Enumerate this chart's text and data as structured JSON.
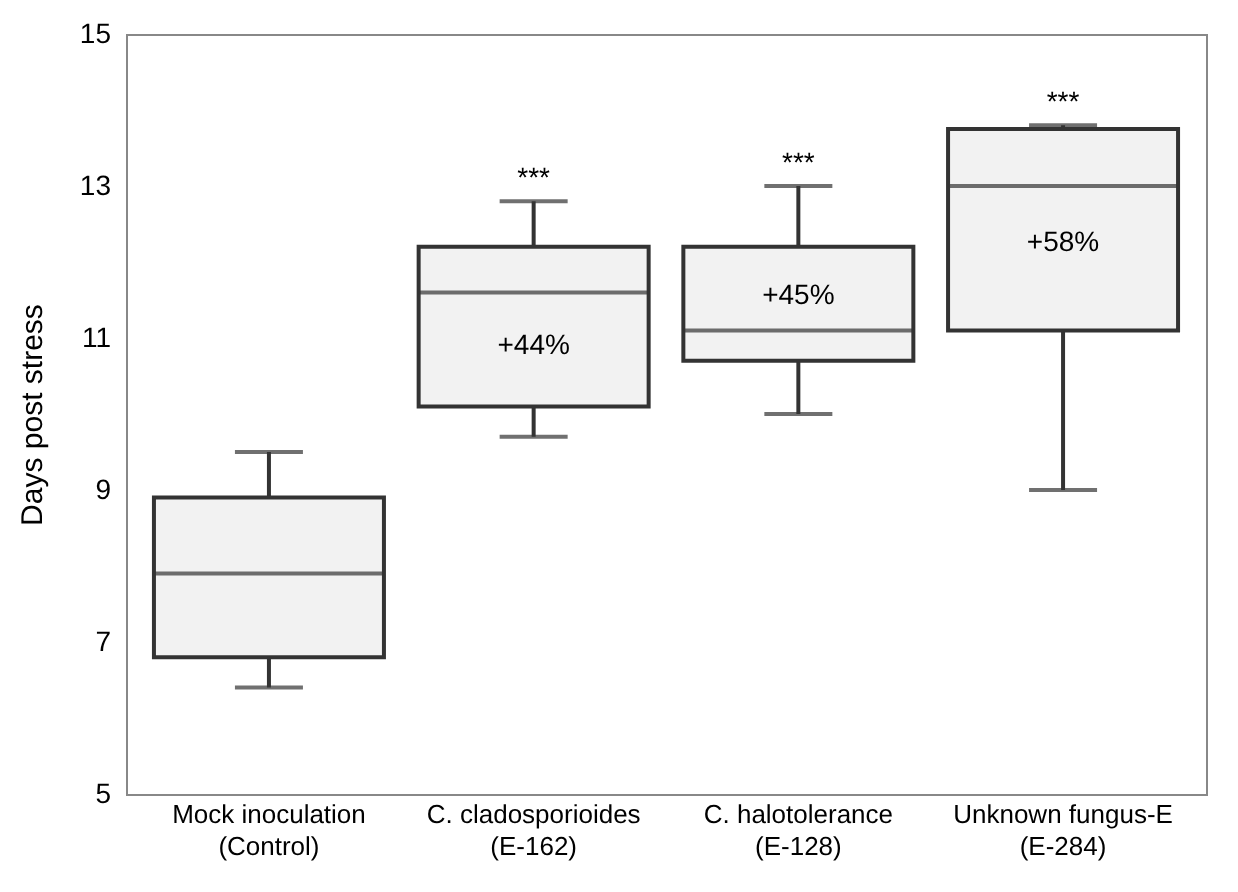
{
  "chart_data": {
    "type": "box",
    "ylabel": "Days post stress",
    "categories": [
      "Mock inoculation\n(Control)",
      "C.  cladosporioides\n(E-162)",
      "C. halotolerance\n(E-128)",
      "Unknown fungus-E\n(E-284)"
    ],
    "color": "#f2f2f2",
    "boxes": [
      {
        "low": 6.4,
        "q1": 6.8,
        "median": 7.9,
        "q3": 8.9,
        "high": 9.5
      },
      {
        "low": 9.7,
        "q1": 10.1,
        "median": 11.6,
        "q3": 12.2,
        "high": 12.8
      },
      {
        "low": 10.0,
        "q1": 10.7,
        "median": 11.1,
        "q3": 12.2,
        "high": 13.0
      },
      {
        "low": 9.0,
        "q1": 11.1,
        "median": 13.0,
        "q3": 13.75,
        "high": 13.8
      }
    ],
    "ylim": [
      5,
      15
    ],
    "yticks": [
      5,
      7,
      9,
      11,
      13,
      15
    ],
    "annotations": [
      {
        "text": "***",
        "x": "C.  cladosporioides\n(E-162)",
        "y": 12.8
      },
      {
        "text": "***",
        "x": "C. halotolerance\n(E-128)",
        "y": 13.0
      },
      {
        "text": "***",
        "x": "Unknown fungus-E\n(E-284)",
        "y": 13.8
      },
      {
        "text": "+44%",
        "x": "C.  cladosporioides\n(E-162)",
        "y": 10.9
      },
      {
        "text": "+45%",
        "x": "C. halotolerance\n(E-128)",
        "y": 11.55
      },
      {
        "text": "+58%",
        "x": "Unknown fungus-E\n(E-284)",
        "y": 12.25
      }
    ]
  }
}
